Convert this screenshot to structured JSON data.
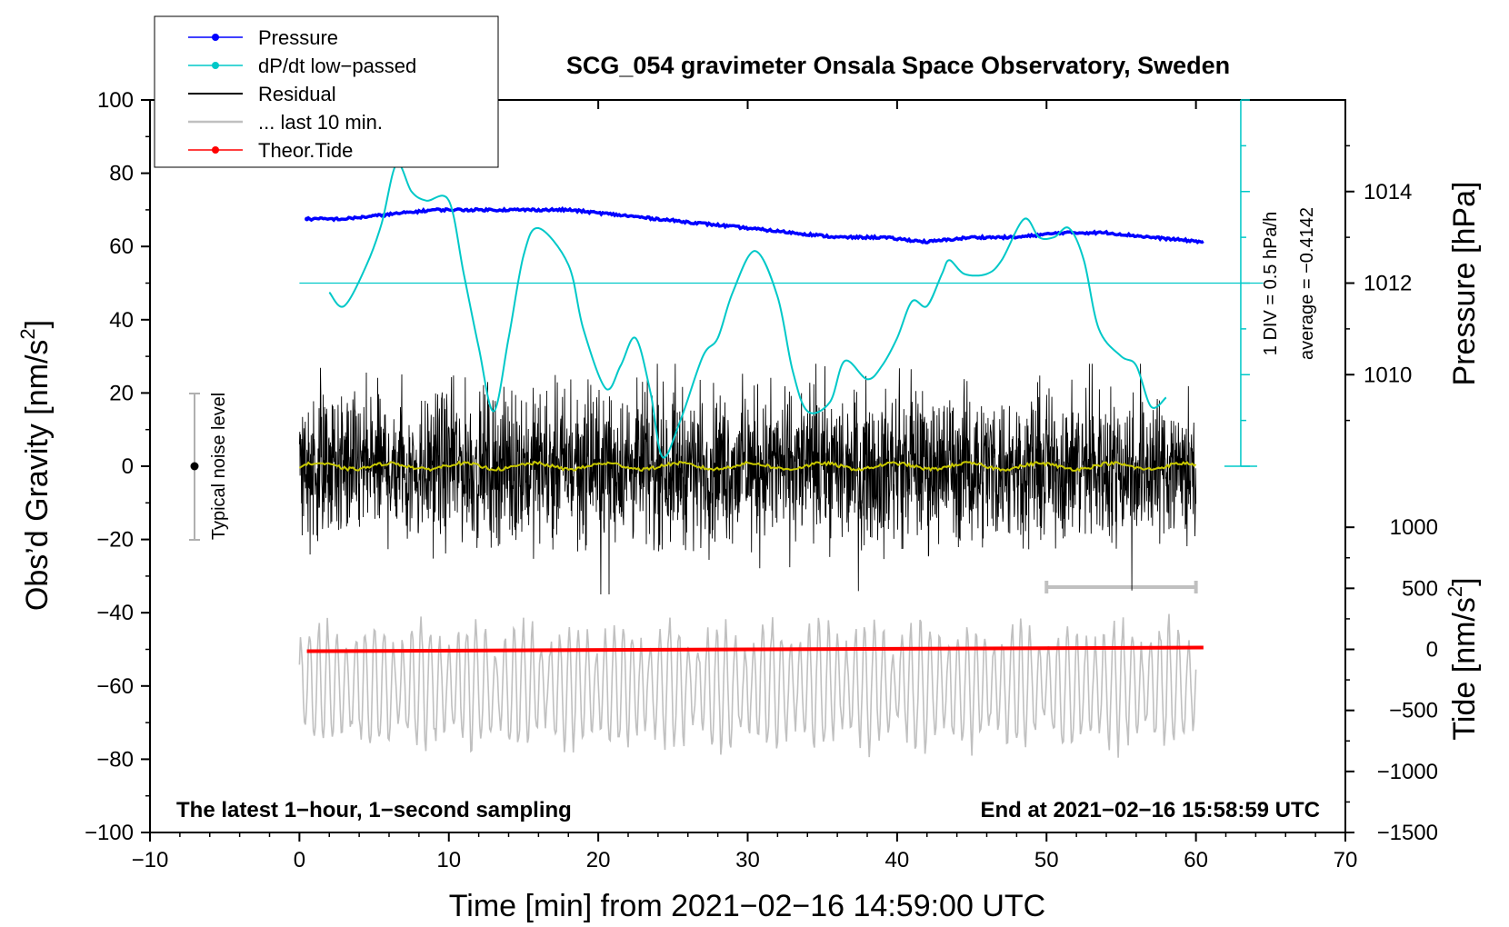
{
  "chart_data": {
    "type": "line",
    "title": "SCG_054 gravimeter Onsala Space Observatory, Sweden",
    "xlabel": "Time [min] from 2021−02−16 14:59:00 UTC",
    "ylabel_main": "Obs’d Gravity [nm/s",
    "ylabel_main_sup": "2",
    "ylabel_main_end": "]",
    "ylabel_pressure": "Pressure [hPa]",
    "ylabel_tide": "Tide [nm/s",
    "ylabel_tide_sup": "2",
    "ylabel_tide_end": "]",
    "xlim": [
      -10,
      70
    ],
    "ylim": [
      -100,
      100
    ],
    "x_ticks": [
      "−10",
      "0",
      "10",
      "20",
      "30",
      "40",
      "50",
      "60",
      "70"
    ],
    "y_ticks": [
      "100",
      "80",
      "60",
      "40",
      "20",
      "0",
      "−20",
      "−40",
      "−60",
      "−80",
      "−100"
    ],
    "pressure_axis": {
      "ticks": [
        "1014",
        "1012",
        "1010"
      ],
      "range_hpa": [
        1008,
        1016
      ]
    },
    "tide_axis": {
      "ticks": [
        "1000",
        "500",
        "0",
        "−500",
        "−1000",
        "−1500"
      ],
      "range": [
        -1500,
        1500
      ]
    },
    "legend": [
      {
        "label": "Pressure",
        "color": "#0000ff",
        "marker": true
      },
      {
        "label": "dP/dt low−passed",
        "color": "#00c8c8",
        "marker": true
      },
      {
        "label": "Residual",
        "color": "#000000",
        "marker": false
      },
      {
        "label": "... last 10 min.",
        "color": "#c0c0c0",
        "marker": false
      },
      {
        "label": "Theor.Tide",
        "color": "#ff0000",
        "marker": true
      }
    ],
    "noise_label": "Typical noise level",
    "noise_level": [
      -20,
      20
    ],
    "div_label": "1 DIV = 0.5 hPa/h",
    "average_label": "average = −0.4142",
    "dpdt_reference_hpa": 1012,
    "note_left": "The latest 1−hour, 1−second sampling",
    "note_right": "End at 2021−02−16 15:58:59 UTC",
    "last10_bar_minutes": [
      50,
      60
    ],
    "series": [
      {
        "name": "Pressure",
        "unit": "hPa",
        "x": [
          0.5,
          3,
          6,
          9,
          12,
          15,
          18,
          21,
          24,
          27,
          30,
          33,
          36,
          39,
          42,
          45,
          48,
          51,
          54,
          57,
          60.5
        ],
        "values": [
          1013.4,
          1013.4,
          1013.5,
          1013.6,
          1013.6,
          1013.6,
          1013.6,
          1013.5,
          1013.4,
          1013.3,
          1013.2,
          1013.1,
          1013.0,
          1013.0,
          1012.9,
          1013.0,
          1013.0,
          1013.1,
          1013.1,
          1013.0,
          1012.9
        ]
      },
      {
        "name": "dP/dt low-passed",
        "unit": "plotted on pressure axis (1 DIV = 0.5 hPa/h)",
        "x": [
          2,
          3,
          4.5,
          5.5,
          6.5,
          7.5,
          8.5,
          10,
          11,
          12,
          13,
          14,
          15,
          16,
          18,
          19,
          20.5,
          21.5,
          22.5,
          23.5,
          24.3,
          25.5,
          27,
          28,
          29,
          30.5,
          32,
          33,
          34,
          35.5,
          36.5,
          38,
          39,
          40,
          41,
          42,
          43,
          43.5,
          44.5,
          46,
          47,
          48.5,
          49.5,
          50.5,
          51.5,
          52.5,
          53.5,
          55,
          56,
          57,
          58
        ],
        "values": [
          1011.8,
          1011.5,
          1012.4,
          1013.3,
          1014.6,
          1014.0,
          1013.8,
          1013.8,
          1012.2,
          1010.6,
          1009.2,
          1010.8,
          1012.6,
          1013.2,
          1012.4,
          1011.0,
          1009.7,
          1010.2,
          1010.8,
          1009.6,
          1008.2,
          1009.0,
          1010.4,
          1010.8,
          1011.8,
          1012.7,
          1011.7,
          1010.1,
          1009.2,
          1009.4,
          1010.3,
          1009.9,
          1010.2,
          1010.8,
          1011.6,
          1011.5,
          1012.2,
          1012.5,
          1012.2,
          1012.2,
          1012.5,
          1013.4,
          1013.0,
          1013.0,
          1013.2,
          1012.5,
          1011.0,
          1010.4,
          1010.2,
          1009.3,
          1009.5
        ]
      },
      {
        "name": "Residual",
        "unit": "nm/s²",
        "x_range": [
          0,
          60
        ],
        "mean": 0,
        "typical_amplitude": 10,
        "max": 28,
        "min": -35
      },
      {
        "name": "Residual (smoothed)",
        "unit": "nm/s²",
        "color": "#c8c800",
        "x_range": [
          0,
          60
        ],
        "mean": 0,
        "amplitude": 1
      },
      {
        "name": "... last 10 min.",
        "unit": "nm/s² (offset to -60)",
        "x_range": [
          0,
          60
        ],
        "center": -60,
        "typical_amplitude": 12,
        "max": -38,
        "min": -86
      },
      {
        "name": "Theor.Tide",
        "unit": "nm/s²",
        "x": [
          0.5,
          60.5
        ],
        "values": [
          -15,
          15
        ]
      }
    ]
  }
}
